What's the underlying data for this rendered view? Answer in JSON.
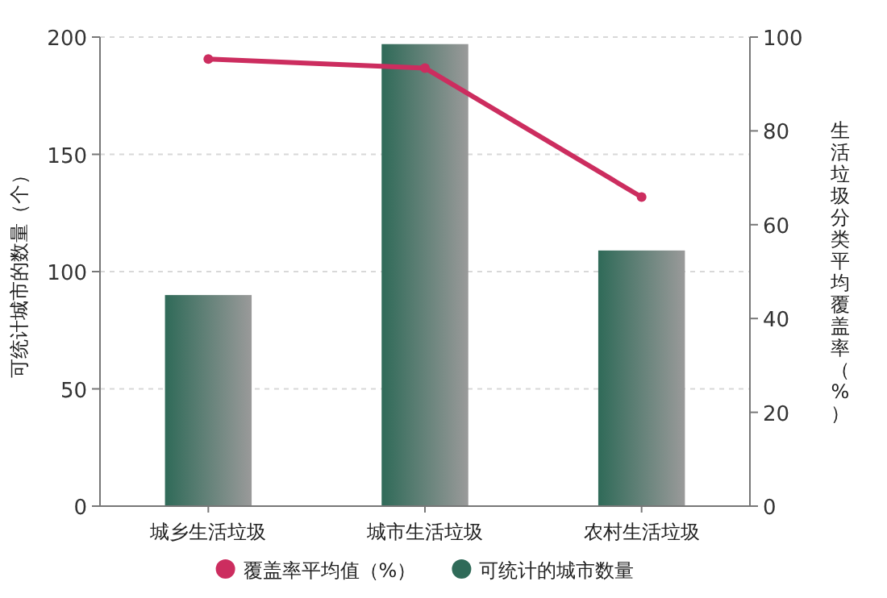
{
  "chart_data": {
    "type": "bar",
    "categories": [
      "城乡生活垃圾",
      "城市生活垃圾",
      "农村生活垃圾"
    ],
    "series": [
      {
        "name": "覆盖率平均值（%）",
        "type": "line",
        "axis": "y2",
        "color": "#cc2d5f",
        "values": [
          95.3,
          93.4,
          65.9
        ],
        "marker": "circle"
      },
      {
        "name": "可统计的城市数量",
        "color": "#2f6a58",
        "values": [
          90,
          197,
          109
        ]
      }
    ],
    "ylabel": "可统计城市的数量（个）",
    "y2label": "生活垃圾分类平均覆盖率（%）",
    "ylim": [
      0,
      200
    ],
    "yticks": [
      0,
      50,
      100,
      150,
      200
    ],
    "y2lim": [
      0,
      100
    ],
    "y2ticks": [
      0,
      20,
      40,
      60,
      80,
      100
    ],
    "grid": "y",
    "legend": "bottom"
  }
}
